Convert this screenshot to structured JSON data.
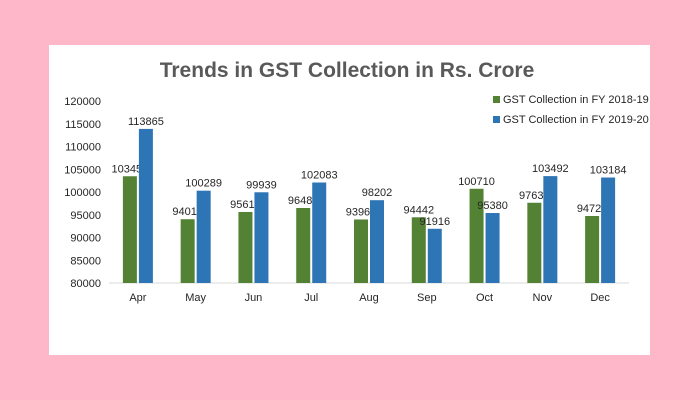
{
  "chart_data": {
    "type": "bar",
    "title": "Trends in GST Collection in Rs. Crore",
    "xlabel": "",
    "ylabel": "",
    "ylim": [
      80000,
      120000
    ],
    "yticks": [
      80000,
      85000,
      90000,
      95000,
      100000,
      105000,
      110000,
      115000,
      120000
    ],
    "grid": false,
    "legend_position": "top-right",
    "categories": [
      "Apr",
      "May",
      "Jun",
      "Jul",
      "Aug",
      "Sep",
      "Oct",
      "Nov",
      "Dec"
    ],
    "series": [
      {
        "name": "GST Collection in FY 2018-19",
        "color": "#548235",
        "values": [
          103459,
          94016,
          95610,
          96483,
          93960,
          94442,
          100710,
          97637,
          94726
        ]
      },
      {
        "name": "GST Collection in FY 2019-20",
        "color": "#2e75b6",
        "values": [
          113865,
          100289,
          99939,
          102083,
          98202,
          91916,
          95380,
          103492,
          103184
        ]
      }
    ]
  }
}
